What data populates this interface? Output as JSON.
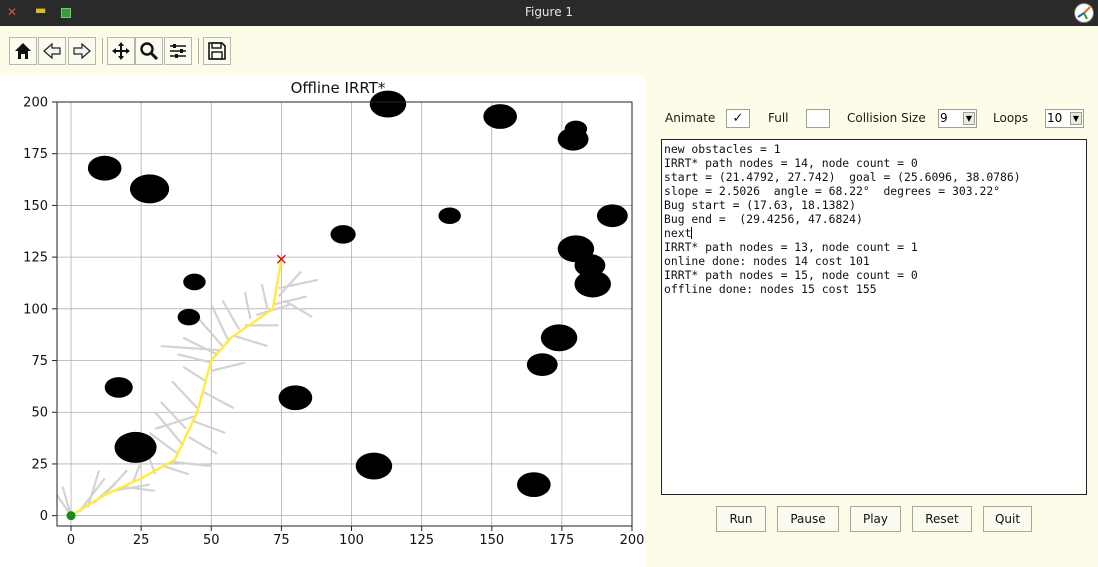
{
  "window": {
    "title": "Figure 1"
  },
  "toolbar": {
    "buttons": [
      {
        "name": "home-button",
        "icon": "home-icon"
      },
      {
        "name": "back-button",
        "icon": "arrow-left-icon"
      },
      {
        "name": "forward-button",
        "icon": "arrow-right-icon"
      },
      {
        "name": "pan-button",
        "icon": "move-icon"
      },
      {
        "name": "zoom-button",
        "icon": "magnifier-icon"
      },
      {
        "name": "configure-button",
        "icon": "sliders-icon"
      },
      {
        "name": "save-button",
        "icon": "floppy-disk-icon"
      }
    ]
  },
  "controls": {
    "animate_label": "Animate",
    "animate_checked": true,
    "full_label": "Full",
    "full_checked": false,
    "collision_label": "Collision Size",
    "collision_value": "9",
    "loops_label": "Loops",
    "loops_value": "10"
  },
  "log": {
    "lines": [
      "new obstacles = 1",
      "IRRT* path nodes = 14, node count = 0",
      "start = (21.4792, 27.742)  goal = (25.6096, 38.0786)",
      "slope = 2.5026  angle = 68.22°  degrees = 303.22°",
      "Bug start = (17.63, 18.1382)",
      "Bug end =  (29.4256, 47.6824)",
      "next",
      "IRRT* path nodes = 13, node count = 1",
      "online done: nodes 14 cost 101",
      "IRRT* path nodes = 15, node count = 0",
      "offline done: nodes 15 cost 155"
    ]
  },
  "buttons": {
    "run": "Run",
    "pause": "Pause",
    "play": "Play",
    "reset": "Reset",
    "quit": "Quit"
  },
  "chart_data": {
    "type": "scatter",
    "title": "Offline IRRT*",
    "xlim": [
      -5,
      200
    ],
    "ylim": [
      -5,
      200
    ],
    "xticks": [
      0,
      25,
      50,
      75,
      100,
      125,
      150,
      175,
      200
    ],
    "yticks": [
      0,
      25,
      50,
      75,
      100,
      125,
      150,
      175,
      200
    ],
    "grid": true,
    "colors": {
      "obstacle": "#000000",
      "tree": "#d3d3d3",
      "path": "#ffec3b",
      "start": "#1a8a1a",
      "goal": "#e00000"
    },
    "start": [
      0,
      0
    ],
    "goal": [
      75,
      124
    ],
    "obstacles": [
      {
        "x": 12,
        "y": 168,
        "r": 6
      },
      {
        "x": 28,
        "y": 158,
        "r": 7
      },
      {
        "x": 113,
        "y": 199,
        "r": 6.5
      },
      {
        "x": 153,
        "y": 193,
        "r": 6
      },
      {
        "x": 180,
        "y": 187,
        "r": 4
      },
      {
        "x": 179,
        "y": 182,
        "r": 5.5
      },
      {
        "x": 193,
        "y": 145,
        "r": 5.5
      },
      {
        "x": 135,
        "y": 145,
        "r": 4
      },
      {
        "x": 97,
        "y": 136,
        "r": 4.5
      },
      {
        "x": 180,
        "y": 129,
        "r": 6.5
      },
      {
        "x": 185,
        "y": 121,
        "r": 5.5
      },
      {
        "x": 186,
        "y": 112,
        "r": 6.5
      },
      {
        "x": 44,
        "y": 113,
        "r": 4
      },
      {
        "x": 42,
        "y": 96,
        "r": 4
      },
      {
        "x": 174,
        "y": 86,
        "r": 6.5
      },
      {
        "x": 168,
        "y": 73,
        "r": 5.5
      },
      {
        "x": 17,
        "y": 62,
        "r": 5
      },
      {
        "x": 80,
        "y": 57,
        "r": 6
      },
      {
        "x": 23,
        "y": 33,
        "r": 7.5
      },
      {
        "x": 108,
        "y": 24,
        "r": 6.5
      },
      {
        "x": 165,
        "y": 15,
        "r": 6
      }
    ],
    "path": [
      [
        0,
        0
      ],
      [
        12,
        10
      ],
      [
        25,
        18
      ],
      [
        37,
        27
      ],
      [
        45,
        50
      ],
      [
        50,
        75
      ],
      [
        57,
        86
      ],
      [
        72,
        100
      ],
      [
        75,
        124
      ]
    ],
    "tree": [
      [
        [
          0,
          0
        ],
        [
          -3,
          14
        ]
      ],
      [
        [
          0,
          0
        ],
        [
          -5,
          10
        ]
      ],
      [
        [
          3,
          2
        ],
        [
          12,
          18
        ]
      ],
      [
        [
          6,
          4
        ],
        [
          10,
          22
        ]
      ],
      [
        [
          8,
          6
        ],
        [
          16,
          16
        ]
      ],
      [
        [
          12,
          10
        ],
        [
          20,
          22
        ]
      ],
      [
        [
          15,
          12
        ],
        [
          28,
          15
        ]
      ],
      [
        [
          18,
          14
        ],
        [
          30,
          12
        ]
      ],
      [
        [
          22,
          16
        ],
        [
          25,
          26
        ]
      ],
      [
        [
          30,
          20
        ],
        [
          26,
          35
        ]
      ],
      [
        [
          33,
          24
        ],
        [
          42,
          20
        ]
      ],
      [
        [
          36,
          26
        ],
        [
          50,
          24
        ]
      ],
      [
        [
          38,
          30
        ],
        [
          28,
          40
        ]
      ],
      [
        [
          40,
          34
        ],
        [
          30,
          50
        ]
      ],
      [
        [
          42,
          38
        ],
        [
          52,
          30
        ]
      ],
      [
        [
          41,
          42
        ],
        [
          32,
          55
        ]
      ],
      [
        [
          43,
          46
        ],
        [
          55,
          40
        ]
      ],
      [
        [
          44,
          48
        ],
        [
          30,
          42
        ]
      ],
      [
        [
          45,
          52
        ],
        [
          36,
          65
        ]
      ],
      [
        [
          47,
          60
        ],
        [
          58,
          52
        ]
      ],
      [
        [
          48,
          65
        ],
        [
          40,
          72
        ]
      ],
      [
        [
          50,
          70
        ],
        [
          62,
          74
        ]
      ],
      [
        [
          52,
          78
        ],
        [
          40,
          86
        ]
      ],
      [
        [
          53,
          80
        ],
        [
          32,
          82
        ]
      ],
      [
        [
          54,
          82
        ],
        [
          45,
          96
        ]
      ],
      [
        [
          56,
          85
        ],
        [
          50,
          102
        ]
      ],
      [
        [
          58,
          87
        ],
        [
          70,
          82
        ]
      ],
      [
        [
          60,
          90
        ],
        [
          54,
          104
        ]
      ],
      [
        [
          62,
          92
        ],
        [
          74,
          92
        ]
      ],
      [
        [
          64,
          95
        ],
        [
          62,
          108
        ]
      ],
      [
        [
          66,
          97
        ],
        [
          78,
          102
        ]
      ],
      [
        [
          70,
          100
        ],
        [
          68,
          112
        ]
      ],
      [
        [
          72,
          102
        ],
        [
          84,
          106
        ]
      ],
      [
        [
          74,
          106
        ],
        [
          82,
          118
        ]
      ],
      [
        [
          74,
          110
        ],
        [
          88,
          114
        ]
      ],
      [
        [
          76,
          104
        ],
        [
          86,
          96
        ]
      ],
      [
        [
          50,
          74
        ],
        [
          38,
          78
        ]
      ]
    ]
  }
}
